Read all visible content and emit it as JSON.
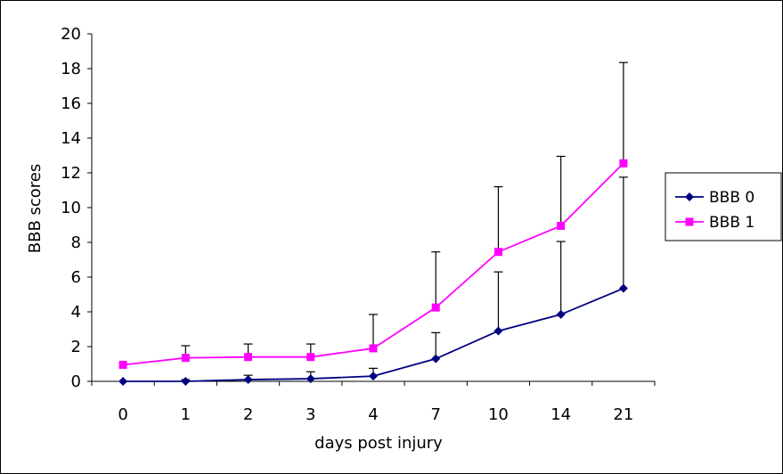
{
  "chart_data": {
    "type": "line",
    "title": "",
    "xlabel": "days post injury",
    "ylabel": "BBB scores",
    "categories": [
      "0",
      "1",
      "2",
      "3",
      "4",
      "7",
      "10",
      "14",
      "21"
    ],
    "ylim": [
      0,
      20
    ],
    "yticks": [
      "0",
      "2",
      "4",
      "6",
      "8",
      "10",
      "12",
      "14",
      "16",
      "18",
      "20"
    ],
    "grid": false,
    "legend_position": "right",
    "series": [
      {
        "name": "BBB 0",
        "color": "#000080",
        "marker": "diamond",
        "values": [
          0,
          0,
          0.1,
          0.15,
          0.3,
          1.3,
          2.9,
          3.85,
          5.35
        ],
        "error_upper": [
          0,
          0.1,
          0.35,
          0.55,
          0.75,
          2.8,
          6.3,
          8.05,
          11.75
        ]
      },
      {
        "name": "BBB 1",
        "color": "#FF00FF",
        "marker": "square",
        "values": [
          0.95,
          1.35,
          1.4,
          1.4,
          1.9,
          4.25,
          7.45,
          8.95,
          12.55
        ],
        "error_upper": [
          0.95,
          2.05,
          2.15,
          2.15,
          3.85,
          7.45,
          11.2,
          12.95,
          18.35
        ]
      }
    ]
  }
}
